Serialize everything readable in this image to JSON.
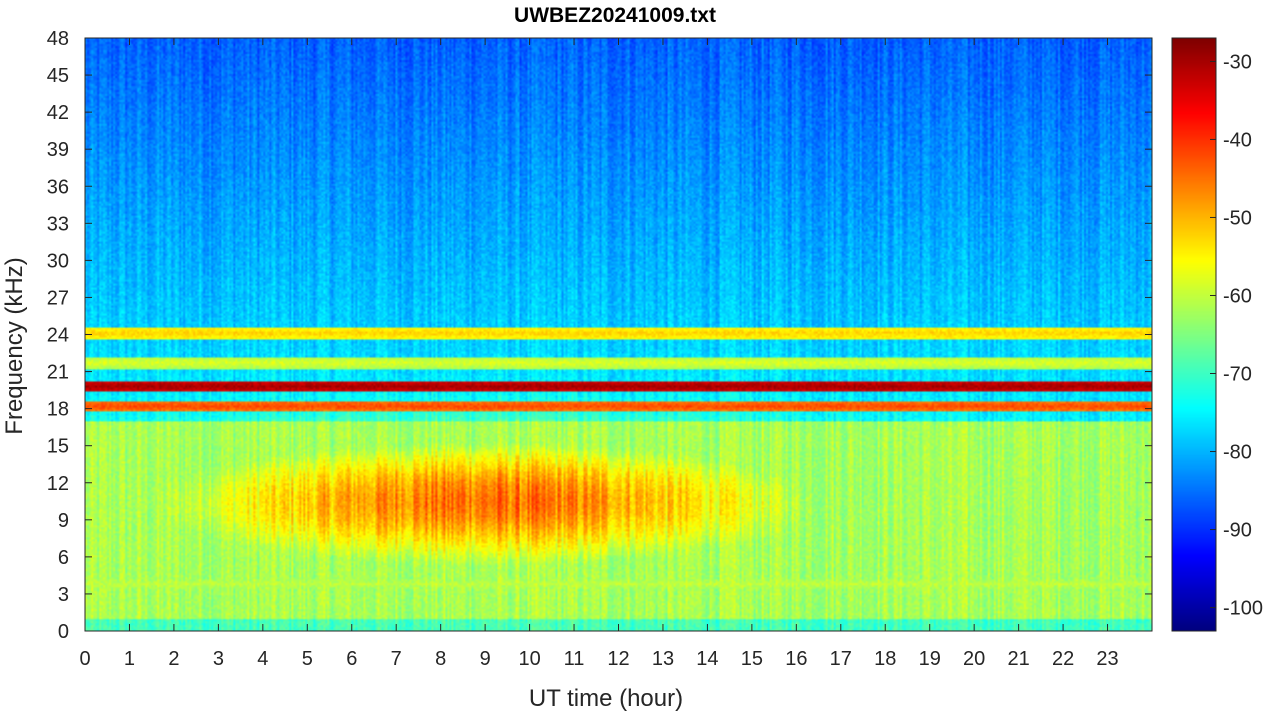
{
  "chart_data": {
    "type": "heatmap",
    "title": "UWBEZ20241009.txt",
    "xlabel": "UT time (hour)",
    "ylabel": "Frequency (kHz)",
    "xlim": [
      0,
      24
    ],
    "ylim": [
      0,
      48
    ],
    "xticks": [
      "0",
      "1",
      "2",
      "3",
      "4",
      "5",
      "6",
      "7",
      "8",
      "9",
      "10",
      "11",
      "12",
      "13",
      "14",
      "15",
      "16",
      "17",
      "18",
      "19",
      "20",
      "21",
      "22",
      "23"
    ],
    "yticks": [
      "0",
      "3",
      "6",
      "9",
      "12",
      "15",
      "18",
      "21",
      "24",
      "27",
      "30",
      "33",
      "36",
      "39",
      "42",
      "45",
      "48"
    ],
    "colormap": "jet",
    "colorbar": {
      "clim": [
        -103,
        -27
      ],
      "ticks": [
        "-30",
        "-40",
        "-50",
        "-60",
        "-70",
        "-80",
        "-90",
        "-100"
      ]
    },
    "features": {
      "background_level": -78,
      "low_freq_band": {
        "freq_range_khz": [
          4,
          17
        ],
        "peak_level": -45,
        "strongest_hours": [
          4.5,
          13.5
        ]
      },
      "transmitter_lines": [
        {
          "freq_khz": 19.8,
          "level": -30
        },
        {
          "freq_khz": 18.2,
          "level": -42
        },
        {
          "freq_khz": 24.1,
          "level": -52
        },
        {
          "freq_khz": 21.7,
          "level": -58
        },
        {
          "freq_khz": 3.8,
          "level": -60
        }
      ]
    }
  }
}
